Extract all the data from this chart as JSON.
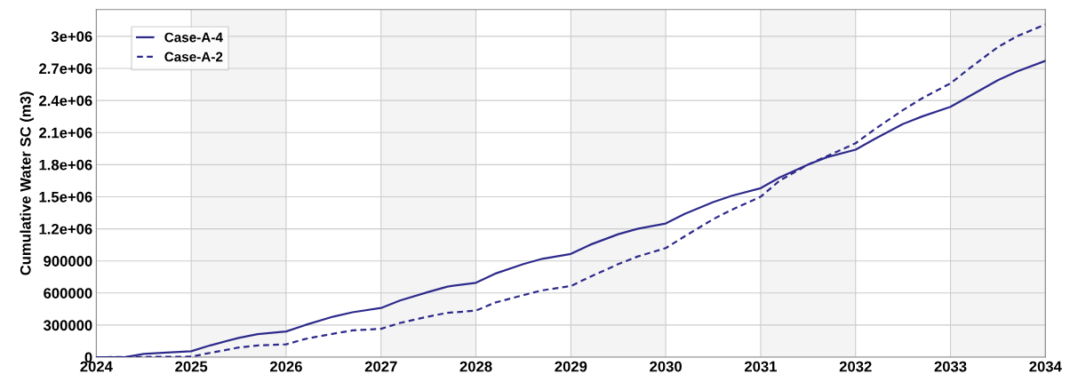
{
  "chart_data": {
    "type": "line",
    "ylabel": "Cumulative Water SC (m3)",
    "xlim": [
      2024,
      2034
    ],
    "xticks": [
      2024,
      2025,
      2026,
      2027,
      2028,
      2029,
      2030,
      2031,
      2032,
      2033,
      2034
    ],
    "ylim": [
      0,
      3250000
    ],
    "yticks": [
      0,
      300000,
      600000,
      900000,
      {
        "value": 1200000,
        "label": "1.2e+06"
      },
      {
        "value": 1500000,
        "label": "1.5e+06"
      },
      {
        "value": 1800000,
        "label": "1.8e+06"
      },
      {
        "value": 2100000,
        "label": "2.1e+06"
      },
      {
        "value": 2400000,
        "label": "2.4e+06"
      },
      {
        "value": 2700000,
        "label": "2.7e+06"
      },
      {
        "value": 3000000,
        "label": "3e+06"
      }
    ],
    "grid": true,
    "legend": "top left",
    "bands": [
      {
        "axis": "x",
        "from": 2025,
        "to": 2026,
        "color": "#f4f4f4"
      },
      {
        "axis": "x",
        "from": 2027,
        "to": 2028,
        "color": "#f4f4f4"
      },
      {
        "axis": "x",
        "from": 2029,
        "to": 2030,
        "color": "#f4f4f4"
      },
      {
        "axis": "x",
        "from": 2031,
        "to": 2032,
        "color": "#f4f4f4"
      },
      {
        "axis": "x",
        "from": 2033,
        "to": 2034,
        "color": "#f4f4f4"
      }
    ],
    "series": [
      {
        "name": "Case-A-4",
        "color": "#2e2a8c",
        "line_style": "solid",
        "x": [
          2024.0,
          2024.3,
          2024.5,
          2024.7,
          2025.0,
          2025.2,
          2025.5,
          2025.7,
          2026.0,
          2026.2,
          2026.5,
          2026.7,
          2027.0,
          2027.2,
          2027.5,
          2027.7,
          2028.0,
          2028.2,
          2028.5,
          2028.7,
          2029.0,
          2029.2,
          2029.5,
          2029.7,
          2030.0,
          2030.2,
          2030.5,
          2030.7,
          2031.0,
          2031.2,
          2031.5,
          2031.7,
          2032.0,
          2032.2,
          2032.5,
          2032.7,
          2033.0,
          2033.2,
          2033.5,
          2033.7,
          2034.0
        ],
        "values": [
          0,
          0,
          30000,
          40000,
          55000,
          110000,
          180000,
          215000,
          240000,
          300000,
          380000,
          420000,
          460000,
          530000,
          610000,
          660000,
          695000,
          780000,
          870000,
          920000,
          965000,
          1050000,
          1150000,
          1200000,
          1250000,
          1340000,
          1450000,
          1510000,
          1580000,
          1680000,
          1800000,
          1870000,
          1940000,
          2040000,
          2180000,
          2250000,
          2340000,
          2440000,
          2590000,
          2670000,
          2770000
        ]
      },
      {
        "name": "Case-A-2",
        "color": "#2e2a8c",
        "line_style": "dashed",
        "x": [
          2024.0,
          2025.0,
          2025.2,
          2025.5,
          2025.7,
          2026.0,
          2026.2,
          2026.5,
          2026.7,
          2027.0,
          2027.2,
          2027.5,
          2027.7,
          2028.0,
          2028.2,
          2028.5,
          2028.7,
          2029.0,
          2029.2,
          2029.5,
          2029.7,
          2030.0,
          2030.2,
          2030.5,
          2030.7,
          2031.0,
          2031.2,
          2031.5,
          2031.7,
          2032.0,
          2032.2,
          2032.5,
          2032.7,
          2033.0,
          2033.2,
          2033.5,
          2033.7,
          2034.0
        ],
        "values": [
          0,
          5000,
          40000,
          90000,
          110000,
          120000,
          170000,
          220000,
          250000,
          265000,
          320000,
          380000,
          415000,
          435000,
          510000,
          580000,
          625000,
          665000,
          750000,
          870000,
          940000,
          1020000,
          1130000,
          1290000,
          1380000,
          1500000,
          1650000,
          1800000,
          1880000,
          2000000,
          2130000,
          2310000,
          2420000,
          2560000,
          2700000,
          2900000,
          3000000,
          3110000
        ]
      }
    ]
  }
}
